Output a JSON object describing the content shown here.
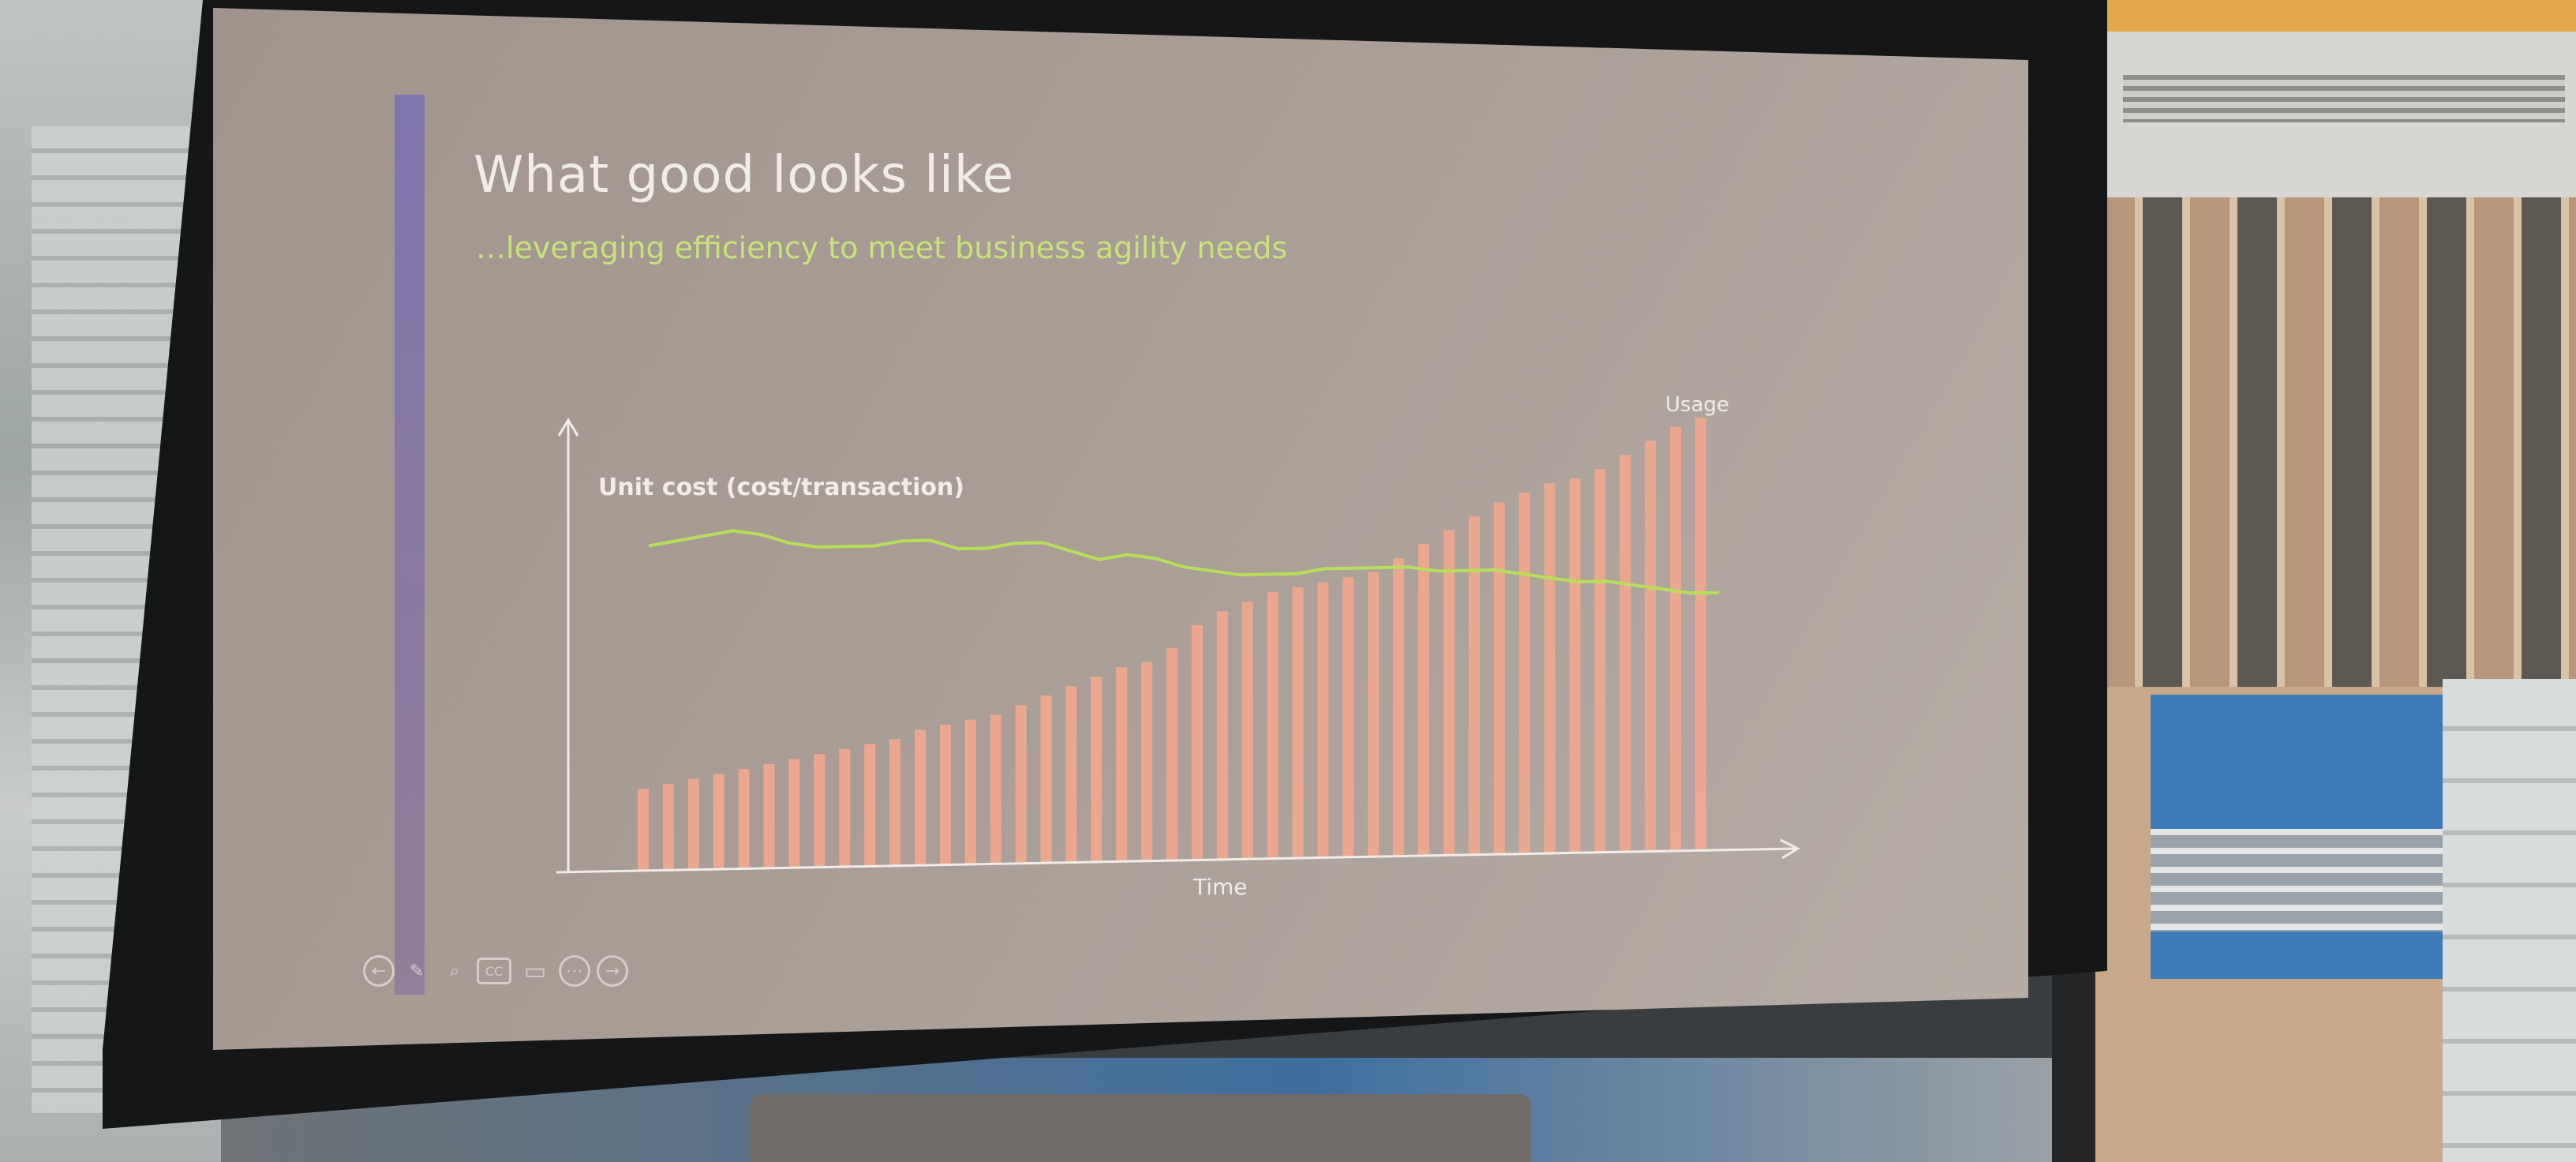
{
  "slide": {
    "title": "What good looks like",
    "subtitle": "…leveraging efficiency to meet business agility needs"
  },
  "toolbar": {
    "icons": [
      "previous-icon",
      "pen-icon",
      "zoom-icon",
      "captions-icon",
      "video-icon",
      "more-icon",
      "next-icon"
    ],
    "glyphs": [
      "←",
      "✎",
      "⌕",
      "CC",
      "▭",
      "⋯",
      "→"
    ]
  },
  "colors": {
    "title": "#f1ece8",
    "subtitle": "#c9e37b",
    "bars": "#f2a98e",
    "line": "#b9df5a",
    "accent_bar": "#7a6fb3"
  },
  "chart_data": {
    "type": "bar",
    "title": "",
    "xlabel": "Time",
    "ylabel": "",
    "annotations": {
      "line_label": "Unit cost (cost/transaction)",
      "bar_label": "Usage"
    },
    "ylim": [
      0,
      100
    ],
    "series": [
      {
        "name": "Usage",
        "type": "bar",
        "values": [
          18,
          19,
          20,
          21,
          22,
          23,
          24,
          25,
          26,
          27,
          28,
          30,
          31,
          32,
          33,
          35,
          37,
          39,
          41,
          43,
          44,
          47,
          52,
          55,
          57,
          59,
          60,
          61,
          62,
          63,
          66,
          69,
          72,
          75,
          78,
          80,
          82,
          83,
          85,
          88,
          91,
          94,
          96
        ]
      },
      {
        "name": "Unit cost (cost/transaction)",
        "type": "line",
        "values": [
          72,
          73,
          74,
          75,
          74,
          72,
          71,
          71,
          71,
          72,
          72,
          70,
          70,
          71,
          71,
          69,
          67,
          68,
          67,
          65,
          64,
          63,
          63,
          63,
          64,
          64,
          64,
          64,
          63,
          63,
          63,
          62,
          61,
          60,
          60,
          59,
          58,
          57,
          57
        ]
      }
    ]
  }
}
